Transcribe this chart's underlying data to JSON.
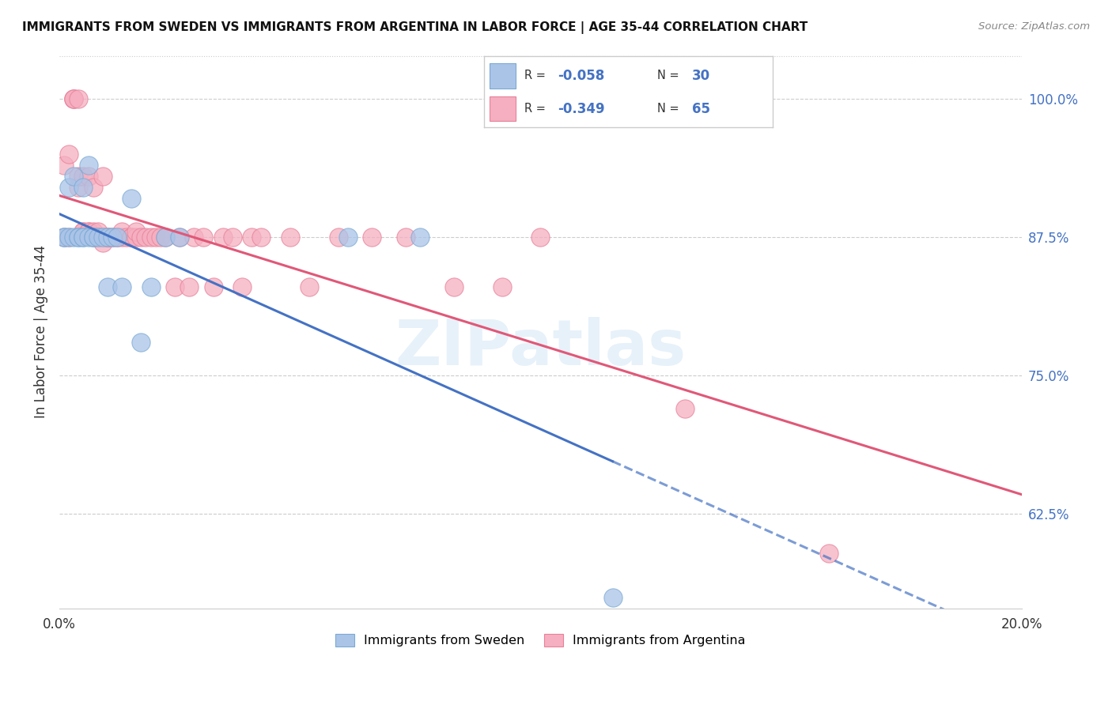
{
  "title": "IMMIGRANTS FROM SWEDEN VS IMMIGRANTS FROM ARGENTINA IN LABOR FORCE | AGE 35-44 CORRELATION CHART",
  "source": "Source: ZipAtlas.com",
  "ylabel": "In Labor Force | Age 35-44",
  "xlim": [
    0.0,
    0.2
  ],
  "ylim": [
    0.54,
    1.04
  ],
  "xticks": [
    0.0,
    0.04,
    0.08,
    0.12,
    0.16,
    0.2
  ],
  "xticklabels": [
    "0.0%",
    "",
    "",
    "",
    "",
    "20.0%"
  ],
  "yticks_right": [
    0.625,
    0.75,
    0.875,
    1.0
  ],
  "ytick_labels_right": [
    "62.5%",
    "75.0%",
    "87.5%",
    "100.0%"
  ],
  "sweden_color": "#aac4e8",
  "argentina_color": "#f5afc0",
  "sweden_edge": "#7aaad4",
  "argentina_edge": "#e8809a",
  "trend_sweden_color": "#4472c4",
  "trend_argentina_color": "#e05878",
  "R_sweden": -0.058,
  "N_sweden": 30,
  "R_argentina": -0.349,
  "N_argentina": 65,
  "legend_labels": [
    "Immigrants from Sweden",
    "Immigrants from Argentina"
  ],
  "watermark": "ZIPatlas",
  "sweden_x": [
    0.001,
    0.001,
    0.002,
    0.002,
    0.003,
    0.003,
    0.004,
    0.004,
    0.005,
    0.005,
    0.005,
    0.006,
    0.006,
    0.007,
    0.007,
    0.008,
    0.009,
    0.01,
    0.01,
    0.011,
    0.012,
    0.013,
    0.015,
    0.017,
    0.019,
    0.022,
    0.025,
    0.06,
    0.075,
    0.115
  ],
  "sweden_y": [
    0.875,
    0.875,
    0.875,
    0.92,
    0.875,
    0.93,
    0.875,
    0.875,
    0.875,
    0.875,
    0.92,
    0.875,
    0.94,
    0.875,
    0.875,
    0.875,
    0.875,
    0.875,
    0.83,
    0.875,
    0.875,
    0.83,
    0.91,
    0.78,
    0.83,
    0.875,
    0.875,
    0.875,
    0.875,
    0.55
  ],
  "argentina_x": [
    0.001,
    0.001,
    0.002,
    0.002,
    0.003,
    0.003,
    0.003,
    0.004,
    0.004,
    0.004,
    0.005,
    0.005,
    0.005,
    0.006,
    0.006,
    0.006,
    0.007,
    0.007,
    0.007,
    0.008,
    0.008,
    0.009,
    0.009,
    0.009,
    0.01,
    0.01,
    0.01,
    0.011,
    0.011,
    0.012,
    0.012,
    0.013,
    0.013,
    0.014,
    0.015,
    0.015,
    0.016,
    0.016,
    0.017,
    0.018,
    0.019,
    0.02,
    0.021,
    0.022,
    0.024,
    0.025,
    0.027,
    0.028,
    0.03,
    0.032,
    0.034,
    0.036,
    0.038,
    0.04,
    0.042,
    0.048,
    0.052,
    0.058,
    0.065,
    0.072,
    0.082,
    0.092,
    0.1,
    0.13,
    0.16
  ],
  "argentina_y": [
    0.875,
    0.94,
    0.875,
    0.95,
    1.0,
    1.0,
    1.0,
    1.0,
    0.92,
    0.93,
    0.93,
    0.88,
    0.88,
    0.93,
    0.88,
    0.88,
    0.92,
    0.88,
    0.875,
    0.88,
    0.875,
    0.93,
    0.875,
    0.87,
    0.875,
    0.875,
    0.875,
    0.875,
    0.875,
    0.875,
    0.875,
    0.875,
    0.88,
    0.875,
    0.875,
    0.875,
    0.875,
    0.88,
    0.875,
    0.875,
    0.875,
    0.875,
    0.875,
    0.875,
    0.83,
    0.875,
    0.83,
    0.875,
    0.875,
    0.83,
    0.875,
    0.875,
    0.83,
    0.875,
    0.875,
    0.875,
    0.83,
    0.875,
    0.875,
    0.875,
    0.83,
    0.83,
    0.875,
    0.72,
    0.59
  ]
}
